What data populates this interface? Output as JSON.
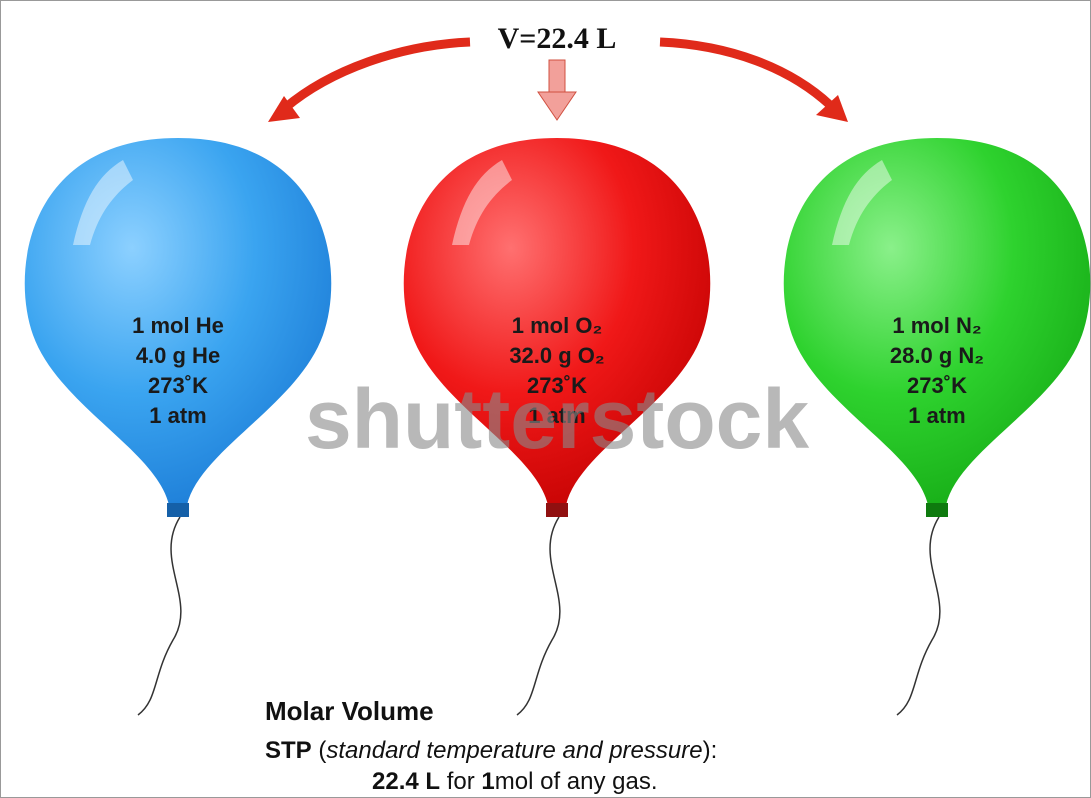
{
  "header": {
    "title": "V=22.4 L"
  },
  "balloons": [
    {
      "lines": [
        "1 mol He",
        "4.0 g He",
        "273˚K",
        "1 atm"
      ]
    },
    {
      "lines": [
        "1 mol O₂",
        "32.0 g O₂",
        "273˚K",
        "1 atm"
      ]
    },
    {
      "lines": [
        "1 mol N₂",
        "28.0 g N₂",
        "273˚K",
        "1 atm"
      ]
    }
  ],
  "watermark": "shutterstock",
  "caption": {
    "heading": "Molar Volume",
    "lines": [
      [
        {
          "text": "STP",
          "style": "bold"
        },
        {
          "text": " (",
          "style": "normal"
        },
        {
          "text": "standard temperature and pressure",
          "style": "italic"
        },
        {
          "text": "):",
          "style": "normal"
        }
      ],
      [
        {
          "text": "22.4 L",
          "style": "bold"
        },
        {
          "text": " for ",
          "style": "normal"
        },
        {
          "text": "1",
          "style": "bold"
        },
        {
          "text": "mol of any gas.",
          "style": "normal"
        }
      ]
    ]
  }
}
